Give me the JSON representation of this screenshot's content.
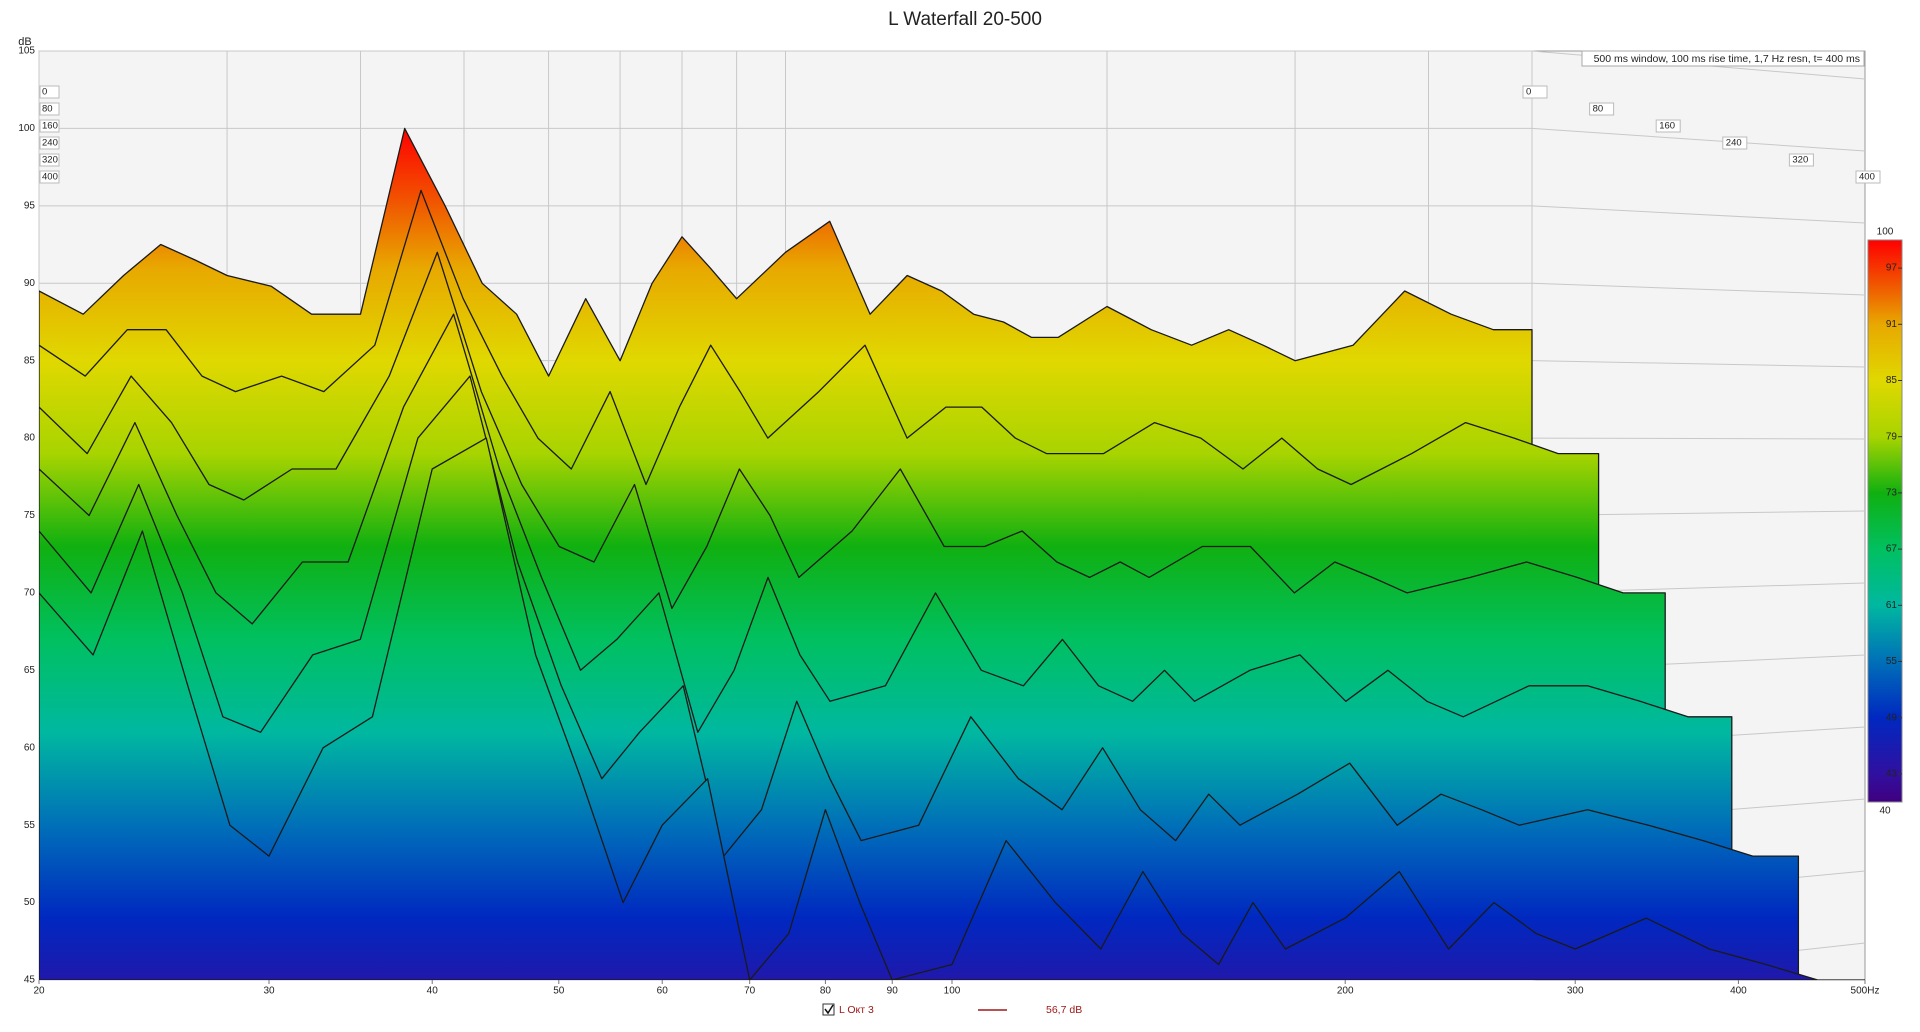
{
  "chart_data": {
    "type": "waterfall",
    "title": "L Waterfall 20-500",
    "y_label": "dB",
    "annotation": "500 ms window, 100 ms rise time,  1,7 Hz resn, t= 400 ms",
    "xscale": "log",
    "xlim": [
      20,
      500
    ],
    "xticks": [
      20,
      30,
      40,
      50,
      60,
      70,
      80,
      90,
      100,
      200,
      300,
      400,
      {
        "value": 500,
        "label": "500Hz"
      }
    ],
    "ylim": [
      45,
      105
    ],
    "yticks": [
      45,
      50,
      55,
      60,
      65,
      70,
      75,
      80,
      85,
      90,
      95,
      100,
      105
    ],
    "grid": true,
    "x": [
      20,
      22,
      24,
      26,
      28,
      30,
      33,
      36,
      40,
      44,
      48,
      52,
      56,
      60,
      65,
      70,
      75,
      80,
      85,
      90,
      100,
      110,
      120,
      130,
      140,
      150,
      160,
      170,
      180,
      200,
      220,
      240,
      260,
      280,
      300,
      340,
      380,
      420,
      460,
      500
    ],
    "series": [
      {
        "name": "0",
        "values": [
          89.5,
          88,
          90.5,
          92.5,
          91.5,
          90.5,
          89.8,
          88,
          88,
          100,
          95,
          90,
          88,
          84,
          89,
          85,
          90,
          93,
          91,
          89,
          92,
          94,
          88,
          90.5,
          89.5,
          88,
          87.5,
          86.5,
          86.5,
          88.5,
          87,
          86,
          87,
          86,
          85,
          86,
          89.5,
          88,
          87,
          87
        ]
      },
      {
        "name": "80",
        "values": [
          86,
          84,
          87,
          87,
          84,
          83,
          84,
          83,
          86,
          96,
          89,
          84,
          80,
          78,
          83,
          77,
          82,
          86,
          83,
          80,
          83,
          86,
          80,
          82,
          82,
          80,
          79,
          79,
          79,
          81,
          80,
          78,
          80,
          78,
          77,
          79,
          81,
          80,
          79,
          79
        ]
      },
      {
        "name": "160",
        "values": [
          82,
          79,
          84,
          81,
          77,
          76,
          78,
          78,
          84,
          92,
          83,
          77,
          73,
          72,
          77,
          69,
          73,
          78,
          75,
          71,
          74,
          78,
          73,
          73,
          74,
          72,
          71,
          72,
          71,
          73,
          73,
          70,
          72,
          71,
          70,
          71,
          72,
          71,
          70,
          70
        ]
      },
      {
        "name": "240",
        "values": [
          78,
          75,
          81,
          75,
          70,
          68,
          72,
          72,
          82,
          88,
          78,
          71,
          65,
          67,
          70,
          61,
          65,
          71,
          66,
          63,
          64,
          70,
          65,
          64,
          67,
          64,
          63,
          65,
          63,
          65,
          66,
          63,
          65,
          63,
          62,
          64,
          64,
          63,
          62,
          62
        ]
      },
      {
        "name": "320",
        "values": [
          74,
          70,
          77,
          70,
          62,
          61,
          66,
          67,
          80,
          84,
          72,
          64,
          58,
          61,
          64,
          53,
          56,
          63,
          58,
          54,
          55,
          62,
          58,
          56,
          60,
          56,
          54,
          57,
          55,
          57,
          59,
          55,
          57,
          56,
          55,
          56,
          55,
          54,
          53,
          53
        ]
      },
      {
        "name": "400",
        "values": [
          70,
          66,
          74,
          64,
          55,
          53,
          60,
          62,
          78,
          80,
          66,
          58,
          50,
          55,
          58,
          45,
          48,
          56,
          50,
          45,
          46,
          54,
          50,
          47,
          52,
          48,
          46,
          50,
          47,
          49,
          52,
          47,
          50,
          48,
          47,
          49,
          47,
          46,
          45,
          45
        ]
      }
    ],
    "colorbar": {
      "range": [
        40,
        100
      ],
      "ticks": [
        97,
        91,
        85,
        79,
        73,
        67,
        61,
        55,
        49,
        43
      ],
      "stops": [
        {
          "value": 100,
          "color": "#ff0000"
        },
        {
          "value": 95,
          "color": "#f05a00"
        },
        {
          "value": 91,
          "color": "#e8a800"
        },
        {
          "value": 85,
          "color": "#e0d800"
        },
        {
          "value": 79,
          "color": "#a8d400"
        },
        {
          "value": 73,
          "color": "#10b010"
        },
        {
          "value": 67,
          "color": "#00c060"
        },
        {
          "value": 61,
          "color": "#00b8a0"
        },
        {
          "value": 55,
          "color": "#0070b8"
        },
        {
          "value": 49,
          "color": "#0028c0"
        },
        {
          "value": 43,
          "color": "#3010a0"
        },
        {
          "value": 40,
          "color": "#400080"
        }
      ]
    },
    "legend": {
      "label": "L Окт 3",
      "value_label": "56,7 dB",
      "color": "#a01818"
    }
  }
}
